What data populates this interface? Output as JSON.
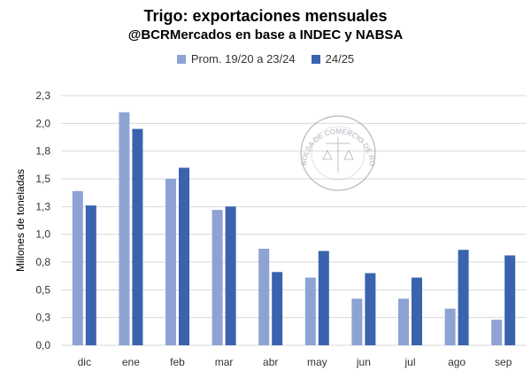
{
  "chart_data": {
    "type": "bar",
    "title": "Trigo: exportaciones mensuales",
    "subtitle": "@BCRMercados en base a INDEC y NABSA",
    "xlabel": "",
    "ylabel": "Millones de toneladas",
    "categories": [
      "dic",
      "ene",
      "feb",
      "mar",
      "abr",
      "may",
      "jun",
      "jul",
      "ago",
      "sep"
    ],
    "series": [
      {
        "name": "Prom. 19/20 a 23/24",
        "color": "#8EA3D4",
        "values": [
          1.39,
          2.1,
          1.5,
          1.22,
          0.87,
          0.61,
          0.42,
          0.42,
          0.33,
          0.23
        ]
      },
      {
        "name": "24/25",
        "color": "#3A63AD",
        "values": [
          1.26,
          1.95,
          1.6,
          1.25,
          0.66,
          0.85,
          0.65,
          0.61,
          0.86,
          0.81
        ]
      }
    ],
    "ylim": [
      0,
      2.25
    ],
    "yticks": [
      0,
      0.25,
      0.5,
      0.75,
      1.0,
      1.25,
      1.5,
      1.75,
      2.0,
      2.25
    ],
    "ytick_labels": [
      "0,0",
      "0,3",
      "0,5",
      "0,8",
      "1,0",
      "1,3",
      "1,5",
      "1,8",
      "2,0",
      "2,3"
    ],
    "grid": true,
    "legend_position": "top"
  },
  "watermark": {
    "text": "BOLSA DE COMERCIO DE ROSARIO"
  }
}
